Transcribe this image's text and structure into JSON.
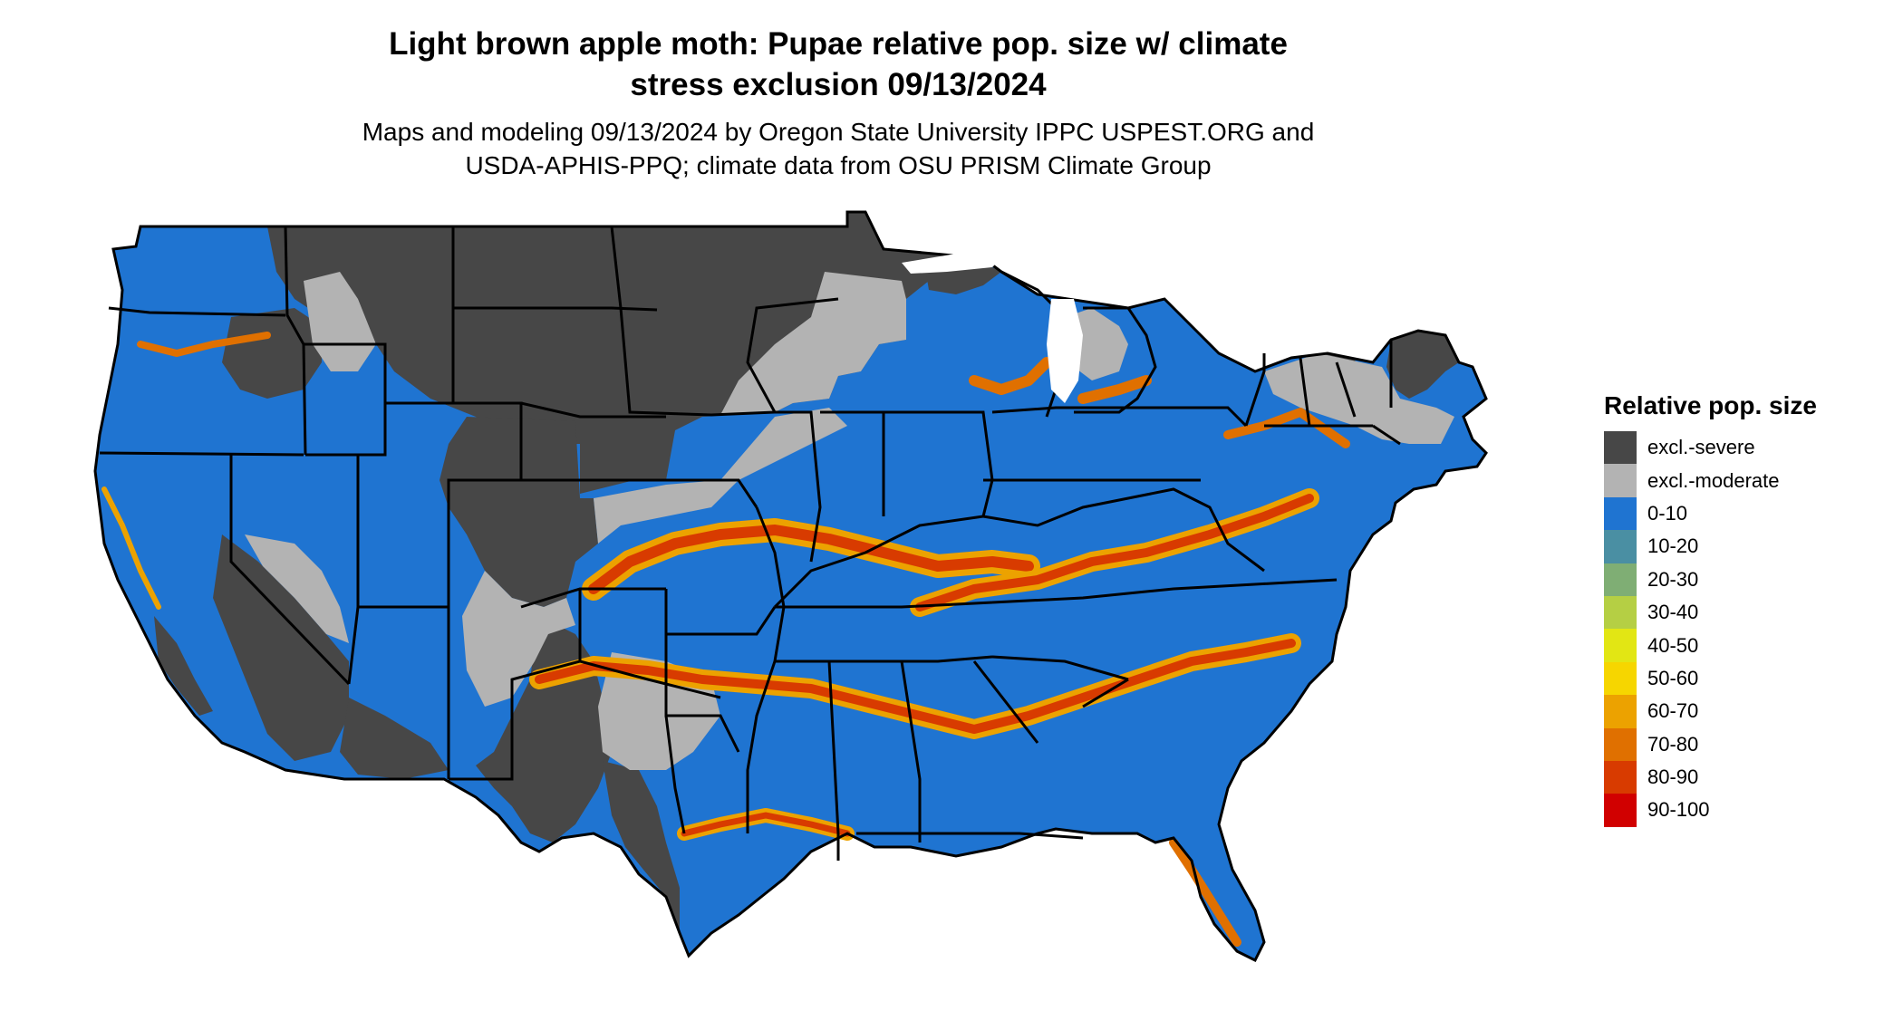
{
  "header": {
    "title_line1": "Light brown apple moth: Pupae relative pop. size w/ climate",
    "title_line2": "stress exclusion 09/13/2024",
    "subtitle_line1": "Maps and modeling 09/13/2024 by Oregon State University IPPC USPEST.ORG and",
    "subtitle_line2": "USDA-APHIS-PPQ; climate data from OSU PRISM Climate Group"
  },
  "legend": {
    "title": "Relative pop. size",
    "items": [
      {
        "label": "excl.-severe",
        "color": "#474747"
      },
      {
        "label": "excl.-moderate",
        "color": "#b3b3b3"
      },
      {
        "label": "0-10",
        "color": "#1f74d1"
      },
      {
        "label": "10-20",
        "color": "#4a8fa3"
      },
      {
        "label": "20-30",
        "color": "#7fae74"
      },
      {
        "label": "30-40",
        "color": "#b5cf44"
      },
      {
        "label": "40-50",
        "color": "#e2e614"
      },
      {
        "label": "50-60",
        "color": "#f6d600"
      },
      {
        "label": "60-70",
        "color": "#eca200"
      },
      {
        "label": "70-80",
        "color": "#e07000"
      },
      {
        "label": "80-90",
        "color": "#d83b00"
      },
      {
        "label": "90-100",
        "color": "#d10000"
      }
    ]
  }
}
